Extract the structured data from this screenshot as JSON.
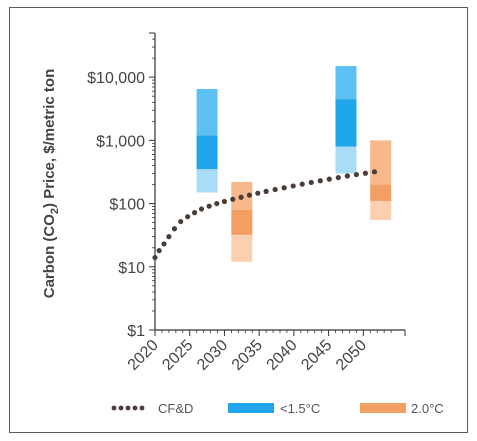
{
  "chart_data": {
    "type": "line",
    "title": "",
    "ylabel": "Carbon (CO₂) Price, $/metric ton",
    "ylabel_parts": {
      "pre": "Carbon (CO",
      "sub": "2",
      "post": ") Price, $/metric ton"
    },
    "xlabel": "",
    "y_scale": "log",
    "ylim": [
      1,
      50000
    ],
    "xlim": [
      2020,
      2056
    ],
    "x_ticks": [
      2020,
      2025,
      2030,
      2035,
      2040,
      2045,
      2050
    ],
    "x_tick_labels": [
      "2020",
      "2025",
      "2030",
      "2035",
      "2040",
      "2045",
      "2050"
    ],
    "y_ticks": [
      1,
      10,
      100,
      1000,
      10000
    ],
    "y_tick_labels": [
      "$1",
      "$10",
      "$100",
      "$1,000",
      "$10,000"
    ],
    "grid": false,
    "legend_position": "bottom",
    "series": [
      {
        "name": "CF&D",
        "kind": "dotted-line",
        "color": "#4a3c36",
        "points": [
          [
            2020.0,
            14
          ],
          [
            2020.6,
            18
          ],
          [
            2021.3,
            23
          ],
          [
            2022.0,
            30
          ],
          [
            2022.8,
            40
          ],
          [
            2023.7,
            52
          ],
          [
            2024.7,
            62
          ],
          [
            2025.7,
            72
          ],
          [
            2026.7,
            82
          ],
          [
            2027.8,
            91
          ],
          [
            2028.9,
            100
          ],
          [
            2030.0,
            108
          ],
          [
            2031.2,
            117
          ],
          [
            2032.4,
            126
          ],
          [
            2033.6,
            136
          ],
          [
            2034.8,
            146
          ],
          [
            2036.0,
            156
          ],
          [
            2037.3,
            167
          ],
          [
            2038.6,
            178
          ],
          [
            2039.9,
            190
          ],
          [
            2041.2,
            203
          ],
          [
            2042.5,
            216
          ],
          [
            2043.8,
            230
          ],
          [
            2045.1,
            244
          ],
          [
            2046.4,
            258
          ],
          [
            2047.7,
            273
          ],
          [
            2049.0,
            288
          ],
          [
            2050.3,
            302
          ],
          [
            2051.6,
            318
          ]
        ]
      },
      {
        "name": "<1.5°C",
        "kind": "range-bars",
        "color_light": "#a8dcf7",
        "color_mid": "#5cc1f2",
        "color_dark": "#1fa5ea",
        "bars": [
          {
            "x": 2030,
            "low": 150,
            "q1": 350,
            "q3": 1200,
            "high": 6500
          },
          {
            "x": 2050,
            "low": 300,
            "q1": 800,
            "q3": 4500,
            "high": 15000
          }
        ]
      },
      {
        "name": "2.0°C",
        "kind": "range-bars",
        "color_light": "#fbd0b0",
        "color_mid": "#f7b88b",
        "color_dark": "#f39f64",
        "bars": [
          {
            "x": 2030,
            "low": 12,
            "q1": 32,
            "q3": 80,
            "high": 220
          },
          {
            "x": 2050,
            "low": 55,
            "q1": 110,
            "q3": 200,
            "high": 1000
          }
        ]
      }
    ],
    "legend": [
      {
        "label": "CF&D",
        "kind": "dots",
        "color": "#4a3c36"
      },
      {
        "label": "<1.5°C",
        "kind": "swatch",
        "color": "#1fa5ea"
      },
      {
        "label": "2.0°C",
        "kind": "swatch",
        "color": "#f39f64"
      }
    ]
  }
}
